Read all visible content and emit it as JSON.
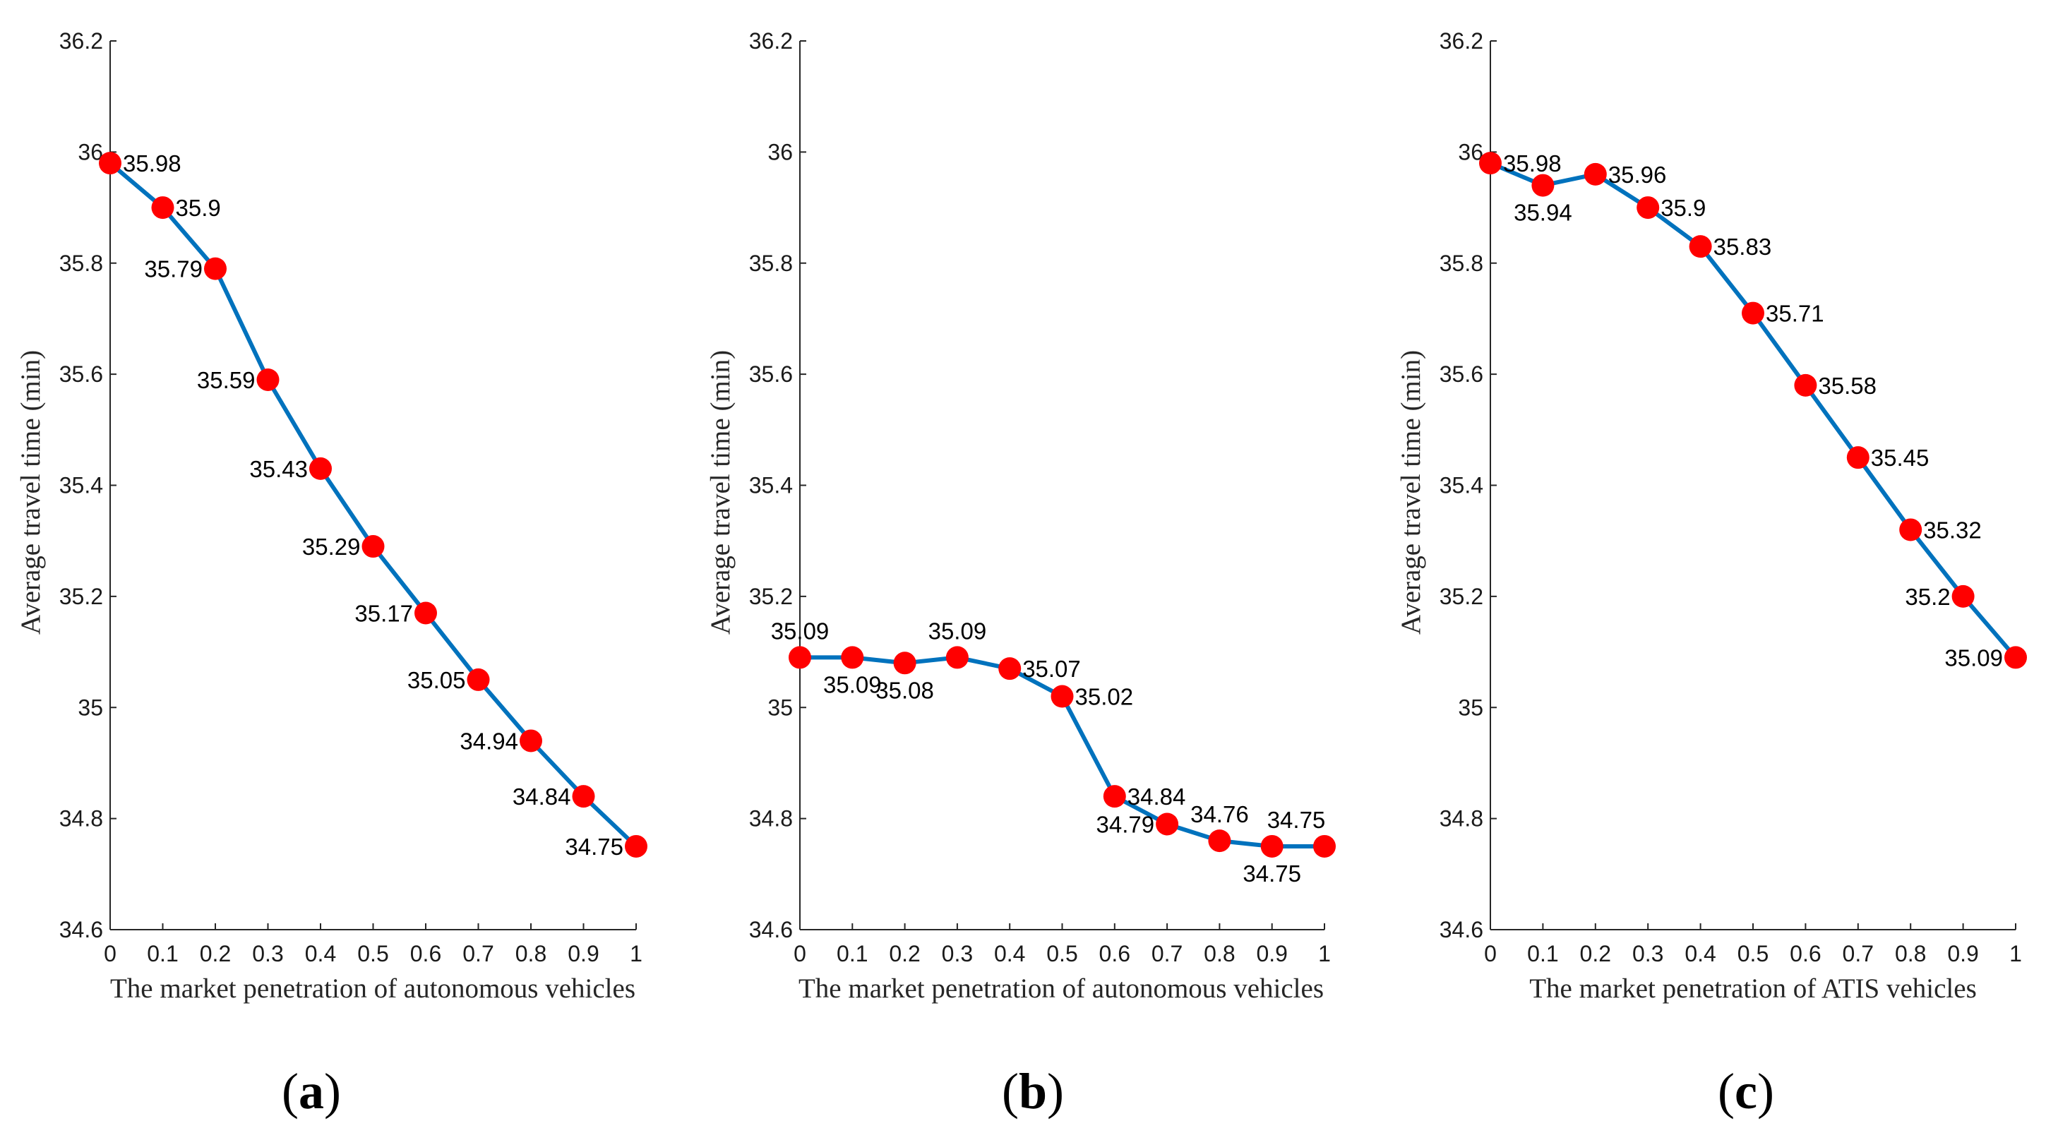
{
  "chart_data": [
    {
      "type": "line",
      "panel_label": "a",
      "xlabel": "The market penetration of autonomous vehicles",
      "ylabel": "Average travel time (min)",
      "x": [
        0,
        0.1,
        0.2,
        0.3,
        0.4,
        0.5,
        0.6,
        0.7,
        0.8,
        0.9,
        1
      ],
      "xtick_labels": [
        "0",
        "0.1",
        "0.2",
        "0.3",
        "0.4",
        "0.5",
        "0.6",
        "0.7",
        "0.8",
        "0.9",
        "1"
      ],
      "ytick_values": [
        34.6,
        34.8,
        35,
        35.2,
        35.4,
        35.6,
        35.8,
        36,
        36.2
      ],
      "ytick_labels": [
        "34.6",
        "34.8",
        "35",
        "35.2",
        "35.4",
        "35.6",
        "35.8",
        "36",
        "36.2"
      ],
      "xlim": [
        0,
        1
      ],
      "ylim": [
        34.6,
        36.2
      ],
      "series": [
        {
          "name": "Average travel time",
          "values": [
            35.98,
            35.9,
            35.79,
            35.59,
            35.43,
            35.29,
            35.17,
            35.05,
            34.94,
            34.84,
            34.75
          ],
          "labels": [
            "35.98",
            "35.9",
            "35.79",
            "35.59",
            "35.43",
            "35.29",
            "35.17",
            "35.05",
            "34.94",
            "34.84",
            "34.75"
          ],
          "label_positions": [
            "right",
            "right",
            "left",
            "left",
            "left",
            "left",
            "left",
            "left",
            "left",
            "left",
            "left"
          ],
          "line_color": "#0072BD",
          "marker_color": "#FF0000"
        }
      ]
    },
    {
      "type": "line",
      "panel_label": "b",
      "xlabel": "The market penetration of autonomous vehicles",
      "ylabel": "Average travel time (min)",
      "x": [
        0,
        0.1,
        0.2,
        0.3,
        0.4,
        0.5,
        0.6,
        0.7,
        0.8,
        0.9,
        1
      ],
      "xtick_labels": [
        "0",
        "0.1",
        "0.2",
        "0.3",
        "0.4",
        "0.5",
        "0.6",
        "0.7",
        "0.8",
        "0.9",
        "1"
      ],
      "ytick_values": [
        34.6,
        34.8,
        35,
        35.2,
        35.4,
        35.6,
        35.8,
        36,
        36.2
      ],
      "ytick_labels": [
        "34.6",
        "34.8",
        "35",
        "35.2",
        "35.4",
        "35.6",
        "35.8",
        "36",
        "36.2"
      ],
      "xlim": [
        0,
        1
      ],
      "ylim": [
        34.6,
        36.2
      ],
      "series": [
        {
          "name": "Average travel time",
          "values": [
            35.09,
            35.09,
            35.08,
            35.09,
            35.07,
            35.02,
            34.84,
            34.79,
            34.76,
            34.75,
            34.75
          ],
          "labels": [
            "35.09",
            "35.09",
            "35.08",
            "35.09",
            "35.07",
            "35.02",
            "34.84",
            "34.79",
            "34.76",
            "34.75",
            "34.75"
          ],
          "label_positions": [
            "above",
            "below",
            "below",
            "above",
            "right",
            "right",
            "right",
            "left",
            "above",
            "below",
            "above-left"
          ],
          "line_color": "#0072BD",
          "marker_color": "#FF0000"
        }
      ]
    },
    {
      "type": "line",
      "panel_label": "c",
      "xlabel": "The market penetration of ATIS vehicles",
      "ylabel": "Average travel time (min)",
      "x": [
        0,
        0.1,
        0.2,
        0.3,
        0.4,
        0.5,
        0.6,
        0.7,
        0.8,
        0.9,
        1
      ],
      "xtick_labels": [
        "0",
        "0.1",
        "0.2",
        "0.3",
        "0.4",
        "0.5",
        "0.6",
        "0.7",
        "0.8",
        "0.9",
        "1"
      ],
      "ytick_values": [
        34.6,
        34.8,
        35,
        35.2,
        35.4,
        35.6,
        35.8,
        36,
        36.2
      ],
      "ytick_labels": [
        "34.6",
        "34.8",
        "35",
        "35.2",
        "35.4",
        "35.6",
        "35.8",
        "36",
        "36.2"
      ],
      "xlim": [
        0,
        1
      ],
      "ylim": [
        34.6,
        36.2
      ],
      "series": [
        {
          "name": "Average travel time",
          "values": [
            35.98,
            35.94,
            35.96,
            35.9,
            35.83,
            35.71,
            35.58,
            35.45,
            35.32,
            35.2,
            35.09
          ],
          "labels": [
            "35.98",
            "35.94",
            "35.96",
            "35.9",
            "35.83",
            "35.71",
            "35.58",
            "35.45",
            "35.32",
            "35.2",
            "35.09"
          ],
          "label_positions": [
            "right",
            "below",
            "right",
            "right",
            "right",
            "right",
            "right",
            "right",
            "right",
            "left",
            "left"
          ],
          "line_color": "#0072BD",
          "marker_color": "#FF0000"
        }
      ]
    }
  ]
}
